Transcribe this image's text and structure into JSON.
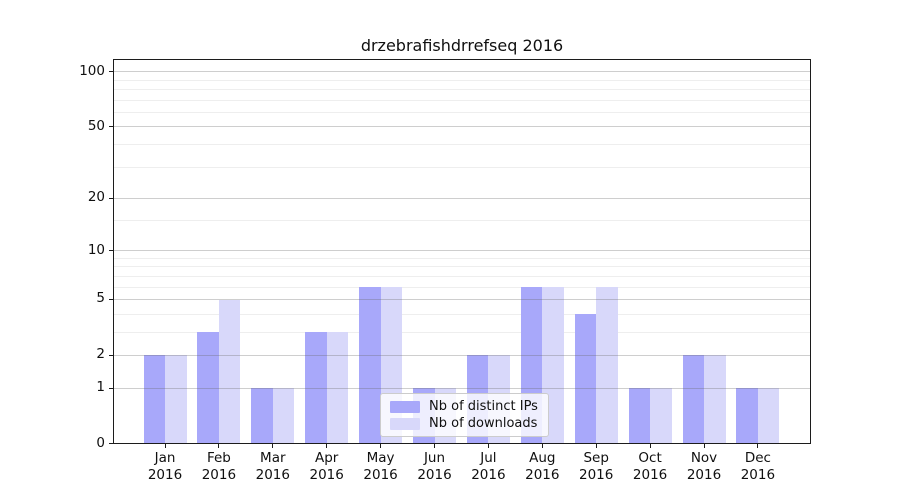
{
  "chart_data": {
    "type": "bar",
    "title": "drzebrafishdrrefseq 2016",
    "categories": [
      "Jan",
      "Feb",
      "Mar",
      "Apr",
      "May",
      "Jun",
      "Jul",
      "Aug",
      "Sep",
      "Oct",
      "Nov",
      "Dec"
    ],
    "category_year": "2016",
    "series": [
      {
        "name": "Nb of distinct IPs",
        "color": "#a8a8fa",
        "values": [
          2,
          3,
          1,
          3,
          6,
          1,
          2,
          6,
          4,
          1,
          2,
          1
        ]
      },
      {
        "name": "Nb of downloads",
        "color": "#d8d8fa",
        "values": [
          2,
          5,
          1,
          3,
          6,
          1,
          2,
          6,
          6,
          1,
          2,
          1
        ]
      }
    ],
    "y_axis": {
      "scale": "log1p",
      "major_ticks": [
        0,
        1,
        2,
        5,
        10,
        20,
        50,
        100
      ],
      "minor_gridlines": [
        3,
        4,
        6,
        7,
        8,
        9,
        15,
        30,
        40,
        60,
        70,
        80,
        90
      ],
      "top_value": 117
    },
    "xlabel": "",
    "ylabel": "",
    "grid": true,
    "legend_position": "bottom-center"
  },
  "colors": {
    "background": "#ffffff",
    "axis": "#1c1c1c",
    "grid_major": "#c9c9c9",
    "grid_minor": "#ebebeb",
    "legend_border": "#cccccc"
  }
}
